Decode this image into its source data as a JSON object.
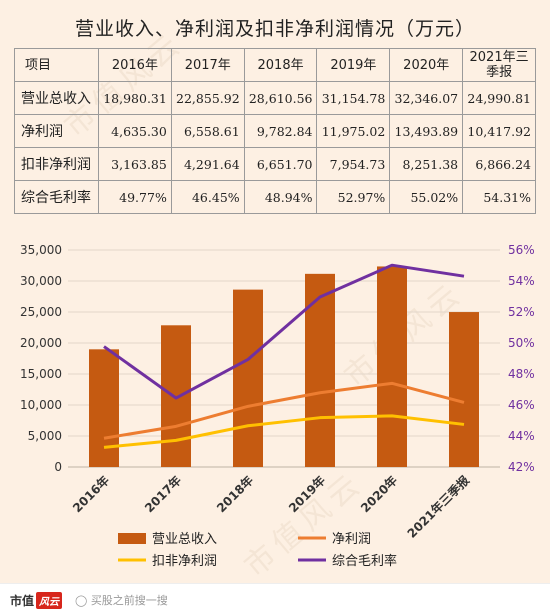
{
  "title": "营业收入、净利润及扣非净利润情况（万元）",
  "table": {
    "corner": "项目",
    "headers": [
      "2016年",
      "2017年",
      "2018年",
      "2019年",
      "2020年",
      "2021年三季报"
    ],
    "rows": [
      {
        "label": "营业总收入",
        "values": [
          "18,980.31",
          "22,855.92",
          "28,610.56",
          "31,154.78",
          "32,346.07",
          "24,990.81"
        ]
      },
      {
        "label": "净利润",
        "values": [
          "4,635.30",
          "6,558.61",
          "9,782.84",
          "11,975.02",
          "13,493.89",
          "10,417.92"
        ]
      },
      {
        "label": "扣非净利润",
        "values": [
          "3,163.85",
          "4,291.64",
          "6,651.70",
          "7,954.73",
          "8,251.38",
          "6,866.24"
        ]
      },
      {
        "label": "综合毛利率",
        "values": [
          "49.77%",
          "46.45%",
          "48.94%",
          "52.97%",
          "55.02%",
          "54.31%"
        ]
      }
    ]
  },
  "chart_data": {
    "type": "bar",
    "categories": [
      "2016年",
      "2017年",
      "2018年",
      "2019年",
      "2020年",
      "2021年三季报"
    ],
    "series": [
      {
        "name": "营业总收入",
        "type": "bar",
        "axis": "left",
        "color": "#c55a11",
        "values": [
          18980.31,
          22855.92,
          28610.56,
          31154.78,
          32346.07,
          24990.81
        ]
      },
      {
        "name": "净利润",
        "type": "line",
        "axis": "left",
        "color": "#ed7d31",
        "values": [
          4635.3,
          6558.61,
          9782.84,
          11975.02,
          13493.89,
          10417.92
        ]
      },
      {
        "name": "扣非净利润",
        "type": "line",
        "axis": "left",
        "color": "#ffc000",
        "values": [
          3163.85,
          4291.64,
          6651.7,
          7954.73,
          8251.38,
          6866.24
        ]
      },
      {
        "name": "综合毛利率",
        "type": "line",
        "axis": "right",
        "color": "#7030a0",
        "values": [
          49.77,
          46.45,
          48.94,
          52.97,
          55.02,
          54.31
        ]
      }
    ],
    "y_left": {
      "min": 0,
      "max": 35000,
      "ticks": [
        "0",
        "5,000",
        "10,000",
        "15,000",
        "20,000",
        "25,000",
        "30,000",
        "35,000"
      ]
    },
    "y_right": {
      "min": 42,
      "max": 56,
      "ticks": [
        "42%",
        "44%",
        "46%",
        "48%",
        "50%",
        "52%",
        "54%",
        "56%"
      ]
    },
    "legend_position": "bottom",
    "grid": true
  },
  "footer": {
    "logo_text": "市值",
    "logo_mark": "风云",
    "search_text": "买股之前搜一搜"
  },
  "watermark": "市值风云"
}
